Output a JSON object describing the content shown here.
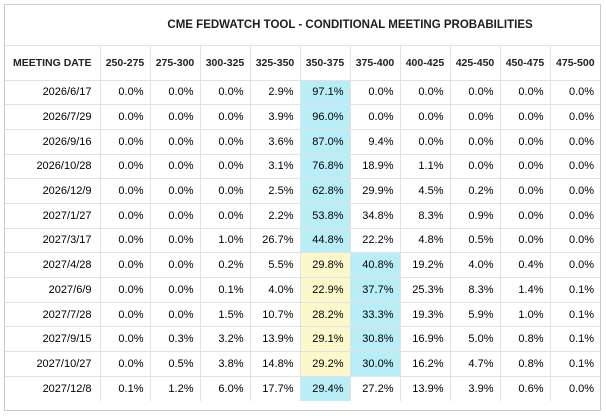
{
  "title": "CME FEDWATCH TOOL - CONDITIONAL MEETING PROBABILITIES",
  "colors": {
    "current_target_highlight": "#b9eef8",
    "prior_target_highlight": "#fbf9cc"
  },
  "columns": [
    "MEETING DATE",
    "250-275",
    "275-300",
    "300-325",
    "325-350",
    "350-375",
    "375-400",
    "400-425",
    "425-450",
    "450-475",
    "475-500"
  ],
  "rows": [
    {
      "date": "2026/6/17",
      "values": [
        "0.0%",
        "0.0%",
        "0.0%",
        "2.9%",
        "97.1%",
        "0.0%",
        "0.0%",
        "0.0%",
        "0.0%",
        "0.0%"
      ],
      "blue": 4,
      "yellow": -1
    },
    {
      "date": "2026/7/29",
      "values": [
        "0.0%",
        "0.0%",
        "0.0%",
        "3.9%",
        "96.0%",
        "0.0%",
        "0.0%",
        "0.0%",
        "0.0%",
        "0.0%"
      ],
      "blue": 4,
      "yellow": -1
    },
    {
      "date": "2026/9/16",
      "values": [
        "0.0%",
        "0.0%",
        "0.0%",
        "3.6%",
        "87.0%",
        "9.4%",
        "0.0%",
        "0.0%",
        "0.0%",
        "0.0%"
      ],
      "blue": 4,
      "yellow": -1
    },
    {
      "date": "2026/10/28",
      "values": [
        "0.0%",
        "0.0%",
        "0.0%",
        "3.1%",
        "76.8%",
        "18.9%",
        "1.1%",
        "0.0%",
        "0.0%",
        "0.0%"
      ],
      "blue": 4,
      "yellow": -1
    },
    {
      "date": "2026/12/9",
      "values": [
        "0.0%",
        "0.0%",
        "0.0%",
        "2.5%",
        "62.8%",
        "29.9%",
        "4.5%",
        "0.2%",
        "0.0%",
        "0.0%"
      ],
      "blue": 4,
      "yellow": -1
    },
    {
      "date": "2027/1/27",
      "values": [
        "0.0%",
        "0.0%",
        "0.0%",
        "2.2%",
        "53.8%",
        "34.8%",
        "8.3%",
        "0.9%",
        "0.0%",
        "0.0%"
      ],
      "blue": 4,
      "yellow": -1
    },
    {
      "date": "2027/3/17",
      "values": [
        "0.0%",
        "0.0%",
        "1.0%",
        "26.7%",
        "44.8%",
        "22.2%",
        "4.8%",
        "0.5%",
        "0.0%",
        "0.0%"
      ],
      "blue": 4,
      "yellow": -1
    },
    {
      "date": "2027/4/28",
      "values": [
        "0.0%",
        "0.0%",
        "0.2%",
        "5.5%",
        "29.8%",
        "40.8%",
        "19.2%",
        "4.0%",
        "0.4%",
        "0.0%"
      ],
      "blue": 5,
      "yellow": 4
    },
    {
      "date": "2027/6/9",
      "values": [
        "0.0%",
        "0.0%",
        "0.1%",
        "4.0%",
        "22.9%",
        "37.7%",
        "25.3%",
        "8.3%",
        "1.4%",
        "0.1%"
      ],
      "blue": 5,
      "yellow": 4
    },
    {
      "date": "2027/7/28",
      "values": [
        "0.0%",
        "0.0%",
        "1.5%",
        "10.7%",
        "28.2%",
        "33.3%",
        "19.3%",
        "5.9%",
        "1.0%",
        "0.1%"
      ],
      "blue": 5,
      "yellow": 4
    },
    {
      "date": "2027/9/15",
      "values": [
        "0.0%",
        "0.3%",
        "3.2%",
        "13.9%",
        "29.1%",
        "30.8%",
        "16.9%",
        "5.0%",
        "0.8%",
        "0.1%"
      ],
      "blue": 5,
      "yellow": 4
    },
    {
      "date": "2027/10/27",
      "values": [
        "0.0%",
        "0.5%",
        "3.8%",
        "14.8%",
        "29.2%",
        "30.0%",
        "16.2%",
        "4.7%",
        "0.8%",
        "0.1%"
      ],
      "blue": 5,
      "yellow": 4
    },
    {
      "date": "2027/12/8",
      "values": [
        "0.1%",
        "1.2%",
        "6.0%",
        "17.7%",
        "29.4%",
        "27.2%",
        "13.9%",
        "3.9%",
        "0.6%",
        "0.0%"
      ],
      "blue": 4,
      "yellow": -1
    }
  ]
}
